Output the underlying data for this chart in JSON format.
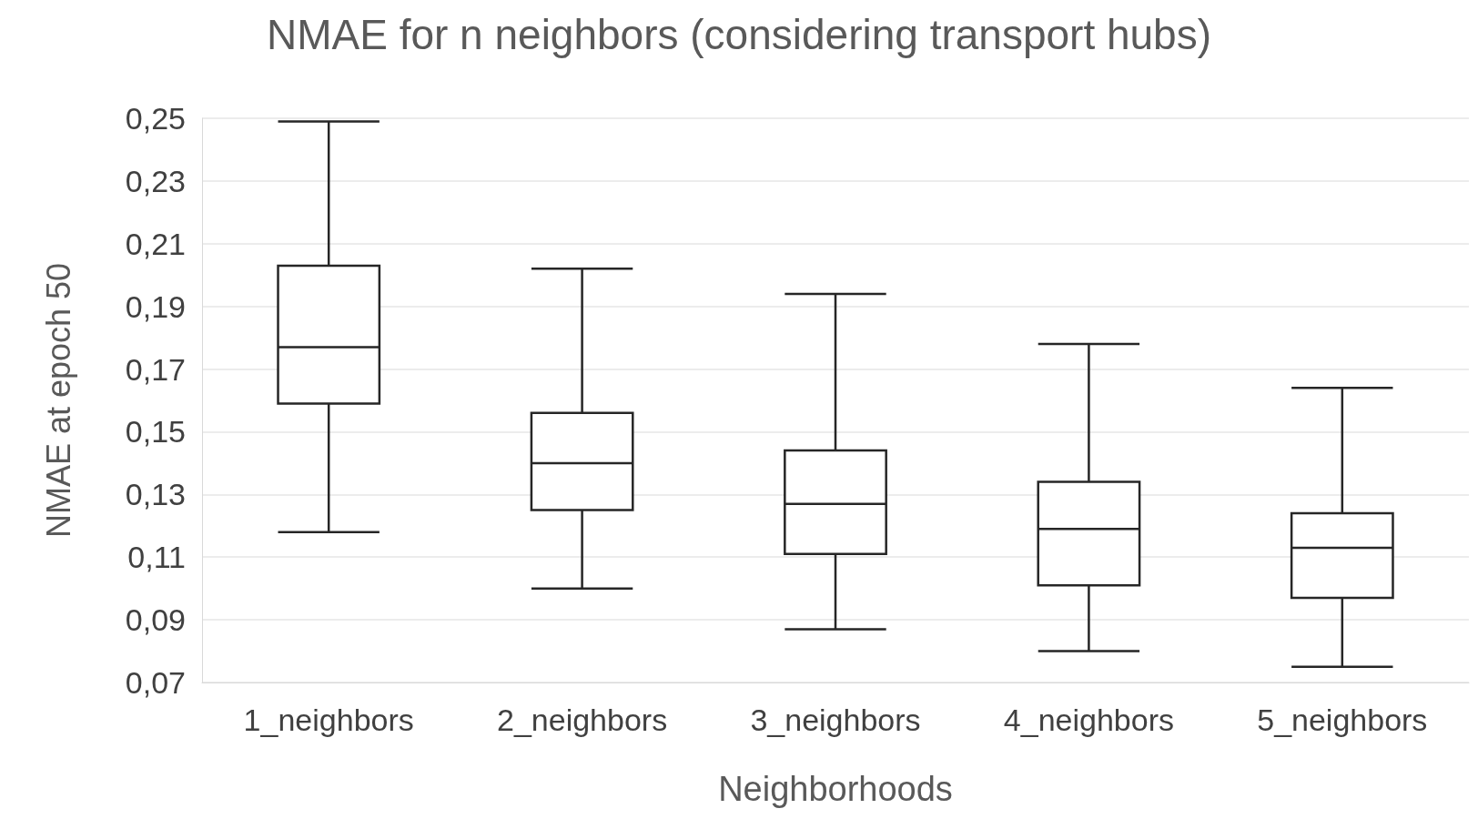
{
  "chart_data": {
    "type": "box",
    "title": "NMAE for n neighbors (considering transport hubs)",
    "xlabel": "Neighborhoods",
    "ylabel": "NMAE at epoch 50",
    "categories": [
      "1_neighbors",
      "2_neighbors",
      "3_neighbors",
      "4_neighbors",
      "5_neighbors"
    ],
    "boxes": [
      {
        "low": 0.118,
        "q1": 0.159,
        "median": 0.177,
        "q3": 0.203,
        "high": 0.249
      },
      {
        "low": 0.1,
        "q1": 0.125,
        "median": 0.14,
        "q3": 0.156,
        "high": 0.202
      },
      {
        "low": 0.087,
        "q1": 0.111,
        "median": 0.127,
        "q3": 0.144,
        "high": 0.194
      },
      {
        "low": 0.08,
        "q1": 0.101,
        "median": 0.119,
        "q3": 0.134,
        "high": 0.178
      },
      {
        "low": 0.075,
        "q1": 0.097,
        "median": 0.113,
        "q3": 0.124,
        "high": 0.164
      }
    ],
    "color": "#262626",
    "ylim": [
      0.07,
      0.25
    ],
    "yticks": [
      {
        "value": 0.07,
        "label": "0,07"
      },
      {
        "value": 0.09,
        "label": "0,09"
      },
      {
        "value": 0.11,
        "label": "0,11"
      },
      {
        "value": 0.13,
        "label": "0,13"
      },
      {
        "value": 0.15,
        "label": "0,15"
      },
      {
        "value": 0.17,
        "label": "0,17"
      },
      {
        "value": 0.19,
        "label": "0,19"
      },
      {
        "value": 0.21,
        "label": "0,21"
      },
      {
        "value": 0.23,
        "label": "0,23"
      },
      {
        "value": 0.25,
        "label": "0,25"
      }
    ],
    "grid": "y"
  }
}
